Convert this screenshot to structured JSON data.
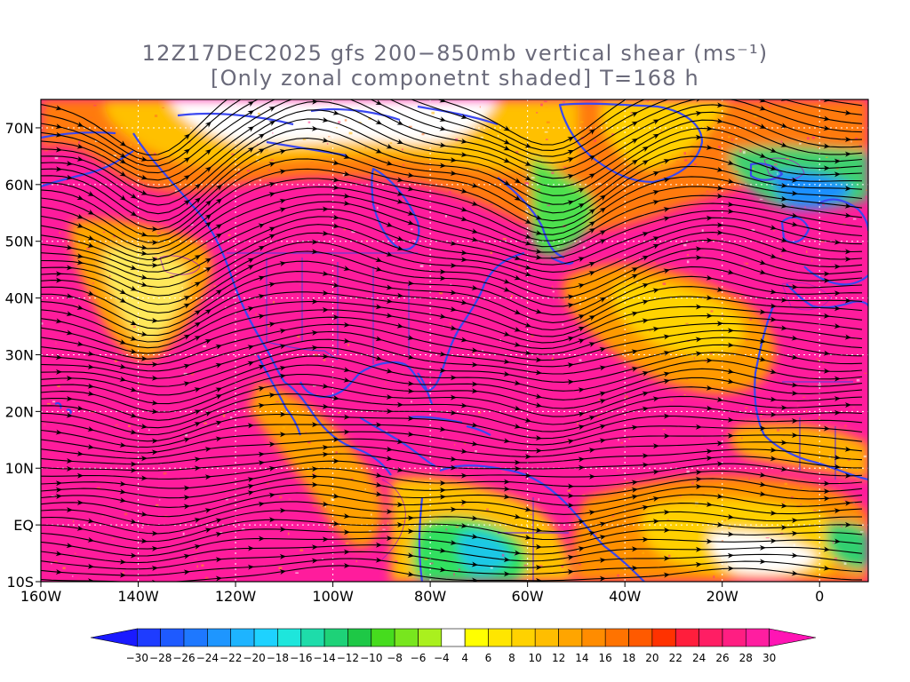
{
  "title": {
    "line1": "12Z17DEC2025 gfs 200−850mb vertical shear (ms⁻¹)",
    "line2": "[Only zonal componetnt shaded] T=168 h"
  },
  "lon_labels": [
    "160W",
    "140W",
    "120W",
    "100W",
    "80W",
    "60W",
    "40W",
    "20W",
    "0"
  ],
  "lat_labels": [
    "70N",
    "60N",
    "50N",
    "40N",
    "30N",
    "20N",
    "10N",
    "EQ",
    "10S"
  ],
  "map": {
    "lon_range": [
      -160,
      10
    ],
    "lat_range": [
      -10,
      75
    ],
    "gridline_color": "#ffffff",
    "coastline_color": "#3344ee",
    "streamline_color": "#000000"
  },
  "colorbar": {
    "labels": [
      "-30",
      "-28",
      "-26",
      "-24",
      "-22",
      "-20",
      "-18",
      "-16",
      "-14",
      "-12",
      "-10",
      "-8",
      "-6",
      "-4",
      "4",
      "6",
      "8",
      "10",
      "12",
      "14",
      "16",
      "18",
      "20",
      "22",
      "24",
      "26",
      "28",
      "30"
    ],
    "colors": [
      "#1a1aff",
      "#1e3cff",
      "#1e5aff",
      "#1e78ff",
      "#1e96ff",
      "#1eb4ff",
      "#1ed2ff",
      "#1ee6dc",
      "#1edcaa",
      "#1ed278",
      "#1ec846",
      "#46dc1e",
      "#78e61e",
      "#aaf01e",
      "#ffffff",
      "#ffff00",
      "#ffe600",
      "#ffd200",
      "#ffbe00",
      "#ffa500",
      "#ff8c00",
      "#ff7300",
      "#ff5a00",
      "#ff3200",
      "#ff1e3c",
      "#ff1e64",
      "#ff1e82",
      "#ff1ea0",
      "#ff14b4"
    ]
  }
}
